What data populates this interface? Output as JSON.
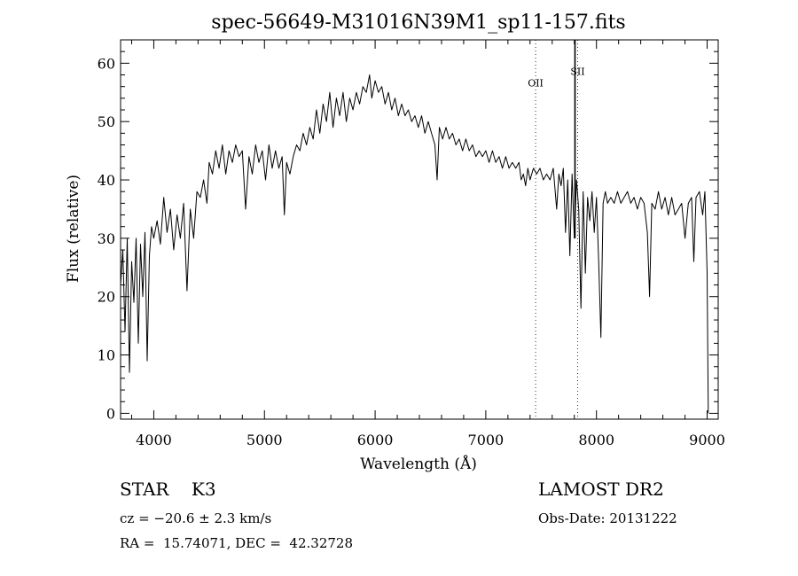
{
  "chart_data": {
    "type": "line",
    "title": "spec-56649-M31016N39M1_sp11-157.fits",
    "xlabel": "Wavelength (Å)",
    "ylabel": "Flux (relative)",
    "xlim": [
      3700,
      9100
    ],
    "ylim": [
      -1,
      64
    ],
    "x_ticks": [
      4000,
      5000,
      6000,
      7000,
      8000,
      9000
    ],
    "y_ticks": [
      0,
      10,
      20,
      30,
      40,
      50,
      60
    ],
    "grid": false,
    "line_color": "#000000",
    "x_minor_step": 200,
    "y_minor_step": 2,
    "series": [
      {
        "values": [
          [
            3700,
            22
          ],
          [
            3720,
            28
          ],
          [
            3740,
            14
          ],
          [
            3760,
            30
          ],
          [
            3780,
            7
          ],
          [
            3800,
            26
          ],
          [
            3820,
            19
          ],
          [
            3840,
            30
          ],
          [
            3860,
            12
          ],
          [
            3880,
            29
          ],
          [
            3900,
            20
          ],
          [
            3920,
            31
          ],
          [
            3940,
            9
          ],
          [
            3960,
            27
          ],
          [
            3980,
            32
          ],
          [
            4000,
            30
          ],
          [
            4030,
            33
          ],
          [
            4060,
            29
          ],
          [
            4090,
            37
          ],
          [
            4120,
            31
          ],
          [
            4150,
            35
          ],
          [
            4180,
            28
          ],
          [
            4210,
            34
          ],
          [
            4240,
            30
          ],
          [
            4270,
            36
          ],
          [
            4300,
            21
          ],
          [
            4330,
            35
          ],
          [
            4360,
            30
          ],
          [
            4390,
            38
          ],
          [
            4420,
            37
          ],
          [
            4450,
            40
          ],
          [
            4480,
            36
          ],
          [
            4500,
            43
          ],
          [
            4530,
            41
          ],
          [
            4560,
            45
          ],
          [
            4590,
            42
          ],
          [
            4620,
            46
          ],
          [
            4650,
            41
          ],
          [
            4680,
            45
          ],
          [
            4710,
            43
          ],
          [
            4740,
            46
          ],
          [
            4770,
            44
          ],
          [
            4800,
            45
          ],
          [
            4830,
            35
          ],
          [
            4860,
            44
          ],
          [
            4890,
            41
          ],
          [
            4920,
            46
          ],
          [
            4950,
            43
          ],
          [
            4980,
            45
          ],
          [
            5010,
            40
          ],
          [
            5040,
            46
          ],
          [
            5070,
            42
          ],
          [
            5100,
            45
          ],
          [
            5130,
            42
          ],
          [
            5160,
            44
          ],
          [
            5180,
            34
          ],
          [
            5200,
            43
          ],
          [
            5230,
            41
          ],
          [
            5260,
            44
          ],
          [
            5290,
            46
          ],
          [
            5320,
            45
          ],
          [
            5350,
            48
          ],
          [
            5380,
            46
          ],
          [
            5410,
            49
          ],
          [
            5440,
            47
          ],
          [
            5470,
            52
          ],
          [
            5500,
            48
          ],
          [
            5530,
            53
          ],
          [
            5560,
            50
          ],
          [
            5590,
            55
          ],
          [
            5620,
            49
          ],
          [
            5650,
            54
          ],
          [
            5680,
            51
          ],
          [
            5710,
            55
          ],
          [
            5740,
            50
          ],
          [
            5770,
            54
          ],
          [
            5800,
            52
          ],
          [
            5830,
            55
          ],
          [
            5860,
            53
          ],
          [
            5890,
            56
          ],
          [
            5920,
            55
          ],
          [
            5950,
            58
          ],
          [
            5970,
            54
          ],
          [
            6000,
            57
          ],
          [
            6030,
            55
          ],
          [
            6060,
            56
          ],
          [
            6090,
            53
          ],
          [
            6120,
            55
          ],
          [
            6150,
            52
          ],
          [
            6180,
            54
          ],
          [
            6210,
            51
          ],
          [
            6240,
            53
          ],
          [
            6270,
            51
          ],
          [
            6300,
            52
          ],
          [
            6330,
            50
          ],
          [
            6360,
            51
          ],
          [
            6390,
            49
          ],
          [
            6420,
            51
          ],
          [
            6450,
            48
          ],
          [
            6480,
            50
          ],
          [
            6510,
            48
          ],
          [
            6540,
            46
          ],
          [
            6560,
            40
          ],
          [
            6580,
            49
          ],
          [
            6610,
            47
          ],
          [
            6640,
            49
          ],
          [
            6670,
            47
          ],
          [
            6700,
            48
          ],
          [
            6730,
            46
          ],
          [
            6760,
            47
          ],
          [
            6790,
            45
          ],
          [
            6820,
            47
          ],
          [
            6850,
            45
          ],
          [
            6880,
            46
          ],
          [
            6910,
            44
          ],
          [
            6940,
            45
          ],
          [
            6970,
            44
          ],
          [
            7000,
            45
          ],
          [
            7030,
            43
          ],
          [
            7060,
            45
          ],
          [
            7090,
            43
          ],
          [
            7120,
            44
          ],
          [
            7150,
            42
          ],
          [
            7180,
            44
          ],
          [
            7210,
            42
          ],
          [
            7240,
            43
          ],
          [
            7270,
            42
          ],
          [
            7300,
            43
          ],
          [
            7320,
            40
          ],
          [
            7340,
            41
          ],
          [
            7360,
            39
          ],
          [
            7380,
            42
          ],
          [
            7400,
            40
          ],
          [
            7430,
            42
          ],
          [
            7460,
            41
          ],
          [
            7490,
            42
          ],
          [
            7520,
            40
          ],
          [
            7550,
            41
          ],
          [
            7580,
            40
          ],
          [
            7610,
            42
          ],
          [
            7640,
            35
          ],
          [
            7660,
            41
          ],
          [
            7680,
            39
          ],
          [
            7700,
            42
          ],
          [
            7720,
            31
          ],
          [
            7740,
            40
          ],
          [
            7760,
            27
          ],
          [
            7780,
            41
          ],
          [
            7800,
            30
          ],
          [
            7820,
            40
          ],
          [
            7840,
            35
          ],
          [
            7860,
            18
          ],
          [
            7880,
            38
          ],
          [
            7900,
            24
          ],
          [
            7920,
            37
          ],
          [
            7940,
            33
          ],
          [
            7960,
            38
          ],
          [
            7980,
            31
          ],
          [
            8000,
            37
          ],
          [
            8020,
            26
          ],
          [
            8040,
            13
          ],
          [
            8060,
            36
          ],
          [
            8080,
            38
          ],
          [
            8100,
            36
          ],
          [
            8130,
            37
          ],
          [
            8160,
            36
          ],
          [
            8190,
            38
          ],
          [
            8220,
            36
          ],
          [
            8250,
            37
          ],
          [
            8280,
            38
          ],
          [
            8310,
            36
          ],
          [
            8340,
            37
          ],
          [
            8370,
            35
          ],
          [
            8400,
            37
          ],
          [
            8430,
            36
          ],
          [
            8460,
            31
          ],
          [
            8480,
            20
          ],
          [
            8500,
            36
          ],
          [
            8530,
            35
          ],
          [
            8560,
            38
          ],
          [
            8590,
            35
          ],
          [
            8620,
            37
          ],
          [
            8650,
            34
          ],
          [
            8680,
            37
          ],
          [
            8710,
            34
          ],
          [
            8740,
            35
          ],
          [
            8770,
            36
          ],
          [
            8800,
            30
          ],
          [
            8830,
            36
          ],
          [
            8860,
            37
          ],
          [
            8880,
            26
          ],
          [
            8900,
            37
          ],
          [
            8930,
            38
          ],
          [
            8960,
            34
          ],
          [
            8980,
            38
          ],
          [
            9000,
            24
          ],
          [
            9010,
            0
          ]
        ]
      }
    ],
    "annotations": [
      {
        "label": "OII",
        "x": 7450,
        "y": 56
      },
      {
        "label": "SII",
        "x": 7830,
        "y": 58
      }
    ]
  },
  "info": {
    "object_line": "STAR    K3",
    "cz_line": "cz = −20.6 ± 2.3 km/s",
    "radec_line": "RA =  15.74071, DEC =  42.32728",
    "survey_line": "LAMOST DR2",
    "date_line": "Obs-Date: 20131222"
  }
}
